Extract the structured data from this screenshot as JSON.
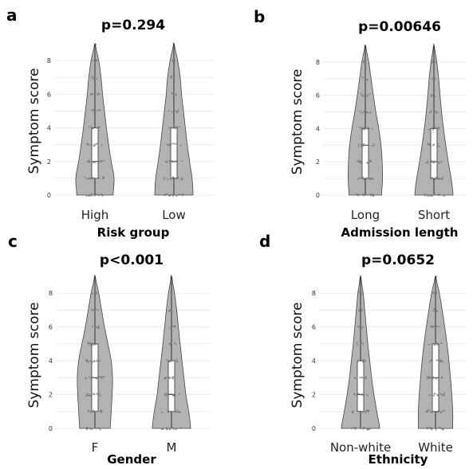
{
  "chart_data": [
    {
      "type": "violin",
      "panel": "a",
      "title": "p=0.294",
      "xlabel": "Risk group",
      "ylabel": "Symptom score",
      "categories": [
        "High",
        "Low"
      ],
      "ylim": [
        0,
        9
      ],
      "yticks": [
        0,
        2,
        4,
        6,
        8
      ],
      "grid": true,
      "box": [
        {
          "q1": 1,
          "median": 2,
          "q3": 4,
          "min": 0,
          "max": 9
        },
        {
          "q1": 1,
          "median": 2,
          "q3": 4,
          "min": 0,
          "max": 9
        }
      ],
      "density": [
        [
          0.95,
          1.0,
          0.85,
          0.72,
          0.6,
          0.5,
          0.4,
          0.32,
          0.2,
          0.02
        ],
        [
          1.0,
          0.95,
          0.82,
          0.7,
          0.6,
          0.5,
          0.4,
          0.33,
          0.2,
          0.02
        ]
      ]
    },
    {
      "type": "violin",
      "panel": "b",
      "title": "p=0.00646",
      "xlabel": "Admission length",
      "ylabel": "Symptom score",
      "categories": [
        "Long",
        "Short"
      ],
      "ylim": [
        0,
        9
      ],
      "yticks": [
        0,
        2,
        4,
        6,
        8
      ],
      "grid": true,
      "box": [
        {
          "q1": 1,
          "median": 3,
          "q3": 4,
          "min": 0,
          "max": 9
        },
        {
          "q1": 1,
          "median": 2,
          "q3": 4,
          "min": 0,
          "max": 9
        }
      ],
      "density": [
        [
          0.85,
          0.9,
          0.88,
          0.82,
          0.7,
          0.55,
          0.42,
          0.3,
          0.18,
          0.02
        ],
        [
          1.0,
          0.9,
          0.75,
          0.62,
          0.5,
          0.4,
          0.32,
          0.25,
          0.15,
          0.02
        ]
      ]
    },
    {
      "type": "violin",
      "panel": "c",
      "title": "p<0.001",
      "xlabel": "Gender",
      "ylabel": "Symptom score",
      "categories": [
        "F",
        "M"
      ],
      "ylim": [
        0,
        9
      ],
      "yticks": [
        0,
        2,
        4,
        6,
        8
      ],
      "grid": true,
      "box": [
        {
          "q1": 1,
          "median": 3,
          "q3": 5,
          "min": 0,
          "max": 9
        },
        {
          "q1": 1,
          "median": 2,
          "q3": 4,
          "min": 0,
          "max": 9
        }
      ],
      "density": [
        [
          0.8,
          0.85,
          0.9,
          0.92,
          0.85,
          0.68,
          0.5,
          0.35,
          0.2,
          0.02
        ],
        [
          1.0,
          0.9,
          0.75,
          0.65,
          0.55,
          0.45,
          0.36,
          0.27,
          0.16,
          0.02
        ]
      ]
    },
    {
      "type": "violin",
      "panel": "d",
      "title": "p=0.0652",
      "xlabel": "Ethnicity",
      "ylabel": "Symptom score",
      "categories": [
        "Non-white",
        "White"
      ],
      "ylim": [
        0,
        9
      ],
      "yticks": [
        0,
        2,
        4,
        6,
        8
      ],
      "grid": true,
      "box": [
        {
          "q1": 1,
          "median": 2,
          "q3": 4,
          "min": 0,
          "max": 9
        },
        {
          "q1": 1,
          "median": 3,
          "q3": 5,
          "min": 0,
          "max": 9
        }
      ],
      "density": [
        [
          1.0,
          0.85,
          0.7,
          0.58,
          0.48,
          0.38,
          0.3,
          0.22,
          0.14,
          0.02
        ],
        [
          0.9,
          0.9,
          0.85,
          0.78,
          0.7,
          0.6,
          0.48,
          0.35,
          0.2,
          0.02
        ]
      ]
    }
  ]
}
